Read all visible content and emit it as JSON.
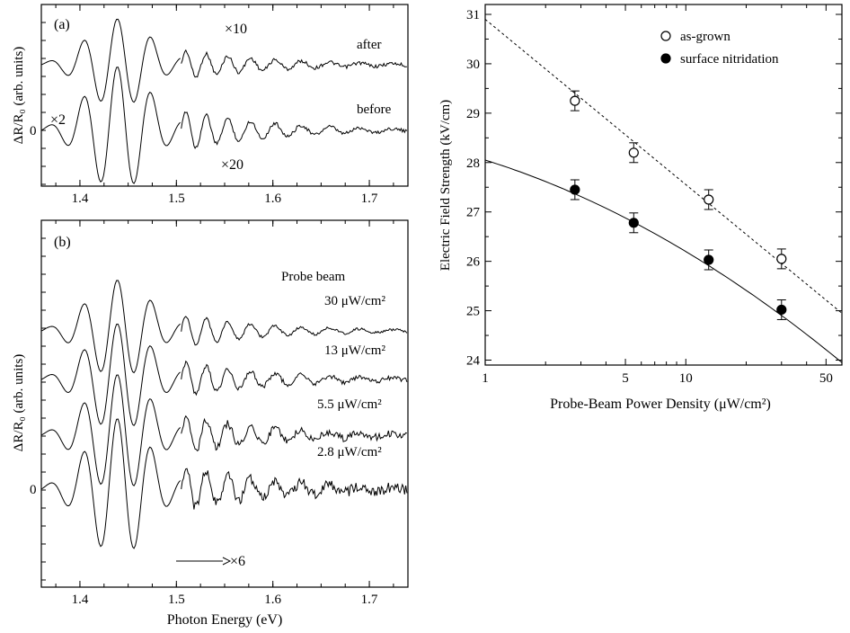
{
  "chart_data": [
    {
      "id": "panel-a",
      "type": "line",
      "panel_label": "(a)",
      "xlabel": "",
      "ylabel": "ΔR/R₀ (arb. units)",
      "xlim": [
        1.36,
        1.74
      ],
      "xticks": [
        1.4,
        1.5,
        1.6,
        1.7
      ],
      "xtick_labels": [
        "1.4",
        "1.5",
        "1.6",
        "1.7"
      ],
      "y_zero_label": "0",
      "series": [
        {
          "name": "after",
          "offset": 1.0,
          "amp_main": 1.0
        },
        {
          "name": "before",
          "offset": 0.0,
          "amp_main": 1.4
        }
      ],
      "annotations": [
        "×10",
        "×20",
        "×2"
      ]
    },
    {
      "id": "panel-b",
      "type": "line",
      "panel_label": "(b)",
      "xlabel": "Photon Energy (eV)",
      "ylabel": "ΔR/R₀ (arb. units)",
      "xlim": [
        1.36,
        1.74
      ],
      "xticks": [
        1.4,
        1.5,
        1.6,
        1.7
      ],
      "xtick_labels": [
        "1.4",
        "1.5",
        "1.6",
        "1.7"
      ],
      "y_zero_label": "0",
      "legend_title": "Probe beam",
      "series": [
        {
          "name": "30 μW/cm²",
          "offset": 3.0,
          "amp_main": 1.0
        },
        {
          "name": "13 μW/cm²",
          "offset": 2.2,
          "amp_main": 1.1
        },
        {
          "name": "5.5 μW/cm²",
          "offset": 1.4,
          "amp_main": 1.2
        },
        {
          "name": "2.8 μW/cm²",
          "offset": 0.6,
          "amp_main": 1.4
        }
      ],
      "annotations": [
        "×6"
      ]
    },
    {
      "id": "panel-c",
      "type": "scatter",
      "x_scale": "log",
      "xlabel": "Probe-Beam Power Density (μW/cm²)",
      "ylabel": "Electric Field Strength (kV/cm)",
      "xlim": [
        1,
        60
      ],
      "ylim": [
        23.9,
        31.2
      ],
      "xticks": [
        1,
        5,
        10,
        50
      ],
      "xtick_labels": [
        "1",
        "5",
        "10",
        "50"
      ],
      "yticks": [
        24,
        25,
        26,
        27,
        28,
        29,
        30,
        31
      ],
      "ytick_labels": [
        "24",
        "25",
        "26",
        "27",
        "28",
        "29",
        "30",
        "31"
      ],
      "legend_position": "top-right",
      "series": [
        {
          "name": "as-grown",
          "marker": "open-circle",
          "x": [
            2.8,
            5.5,
            13,
            30
          ],
          "y": [
            29.25,
            28.2,
            27.25,
            26.05
          ],
          "yerr": [
            0.2,
            0.2,
            0.2,
            0.2
          ],
          "fit": {
            "style": "dashed",
            "x": [
              1,
              60
            ],
            "y": [
              30.9,
              24.95
            ]
          }
        },
        {
          "name": "surface nitridation",
          "marker": "filled-circle",
          "x": [
            2.8,
            5.5,
            13,
            30
          ],
          "y": [
            27.45,
            26.78,
            26.03,
            25.02
          ],
          "yerr": [
            0.2,
            0.2,
            0.2,
            0.2
          ],
          "fit": {
            "style": "solid",
            "x": [
              1,
              5.5,
              13,
              60
            ],
            "y": [
              28.05,
              26.95,
              26.1,
              23.95
            ]
          }
        }
      ]
    }
  ]
}
